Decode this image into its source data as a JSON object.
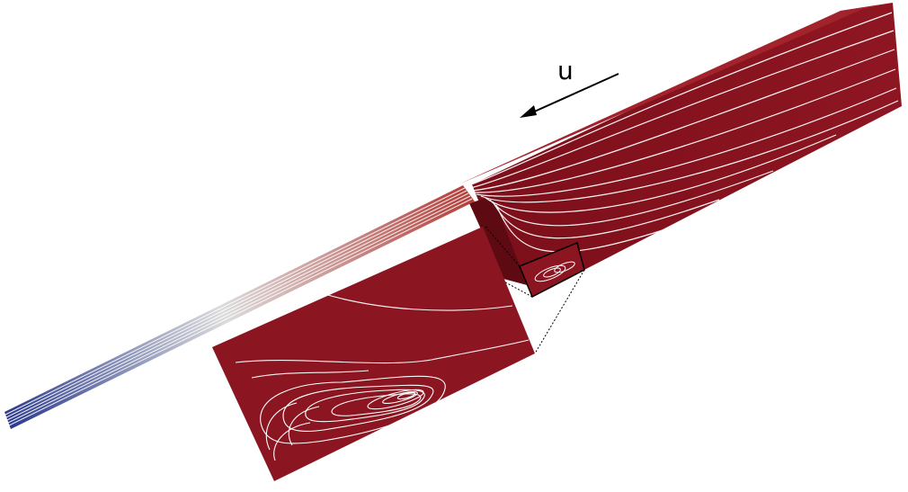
{
  "figure": {
    "velocity_label": "u"
  },
  "colors": {
    "background": "#ffffff",
    "flow_red": "#8b1520",
    "flow_red_dark": "#6a0c16",
    "flow_red_top": "#a3232c",
    "inlet_blue": "#2b3a8e",
    "mid_white": "#dcdcdc",
    "streamline": "#ffffff",
    "frame": "#000000"
  }
}
